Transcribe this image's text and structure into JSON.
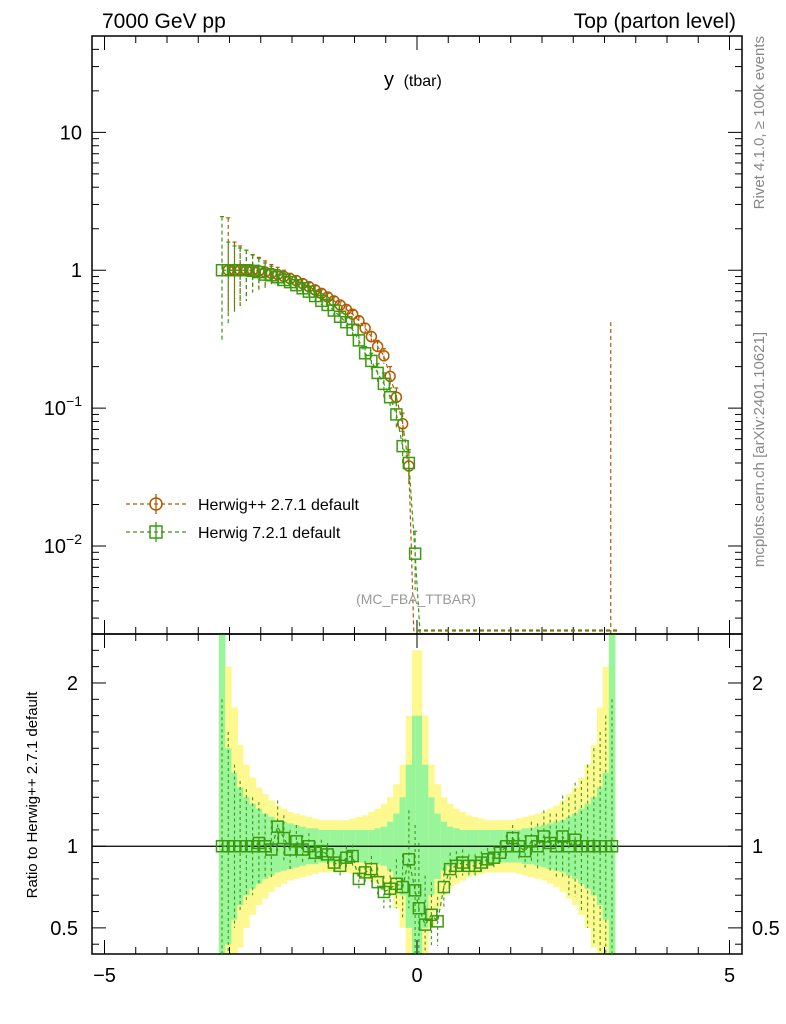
{
  "header": {
    "left": "7000 GeV pp",
    "right": "Top (parton level)"
  },
  "side_labels": {
    "rivet": "Rivet 4.1.0, ≥ 100k events",
    "mcplots": "mcplots.cern.ch [arXiv:2401.10621]"
  },
  "colors": {
    "herwig_pp": "#b35900",
    "herwig7": "#3a9a10",
    "band_inner": "#99f599",
    "band_outer": "#fdf990"
  },
  "chart_data": [
    {
      "type": "scatter",
      "panel": "main",
      "title": "y",
      "title_sub": "(tbar)",
      "analysis_label": "(MC_FBA_TTBAR)",
      "xlim": [
        -5.2,
        5.2
      ],
      "ylim_log": [
        0.0023,
        50
      ],
      "yscale": "log",
      "y_ticks": [
        {
          "value": 10,
          "label": "10"
        },
        {
          "value": 1,
          "label": "1"
        },
        {
          "value": 0.1,
          "base": "10",
          "exp": "−1"
        },
        {
          "value": 0.01,
          "base": "10",
          "exp": "−2"
        }
      ],
      "legend": [
        {
          "label": "Herwig++ 2.7.1 default",
          "marker": "circle",
          "color_key": "herwig_pp"
        },
        {
          "label": "Herwig 7.2.1 default",
          "marker": "square",
          "color_key": "herwig7"
        }
      ],
      "series": [
        {
          "name": "Herwig++ 2.7.1 default",
          "color_key": "herwig_pp",
          "marker": "circle",
          "x": [
            -3.02,
            -2.92,
            -2.83,
            -2.73,
            -2.63,
            -2.53,
            -2.43,
            -2.33,
            -2.23,
            -2.13,
            -2.03,
            -1.93,
            -1.83,
            -1.73,
            -1.63,
            -1.53,
            -1.43,
            -1.33,
            -1.23,
            -1.13,
            -1.03,
            -0.93,
            -0.83,
            -0.73,
            -0.63,
            -0.53,
            -0.43,
            -0.33,
            -0.23,
            -0.13
          ],
          "y": [
            1.0,
            1.0,
            1.0,
            1.0,
            1.0,
            0.99,
            0.97,
            0.95,
            0.93,
            0.9,
            0.87,
            0.84,
            0.8,
            0.76,
            0.72,
            0.68,
            0.64,
            0.6,
            0.56,
            0.52,
            0.48,
            0.43,
            0.38,
            0.33,
            0.28,
            0.24,
            0.17,
            0.12,
            0.077,
            0.038
          ],
          "err_low": [
            0.5,
            0.5,
            0.45,
            0.4,
            0.3,
            0.25,
            0.2,
            0.15,
            0.12,
            0.1,
            0.08,
            0.07,
            0.06,
            0.05,
            0.05,
            0.04,
            0.04,
            0.04,
            0.03,
            0.03,
            0.03,
            0.03,
            0.03,
            0.03,
            0.03,
            0.03,
            0.03,
            0.02,
            0.015,
            0.01
          ],
          "err_high": [
            1.4,
            0.6,
            0.5,
            0.4,
            0.3,
            0.25,
            0.2,
            0.15,
            0.12,
            0.1,
            0.08,
            0.07,
            0.06,
            0.05,
            0.05,
            0.04,
            0.04,
            0.04,
            0.03,
            0.03,
            0.03,
            0.03,
            0.03,
            0.03,
            0.03,
            0.03,
            0.03,
            0.02,
            0.015,
            0.01
          ],
          "spike_x": 3.1,
          "spike_top": 0.42
        },
        {
          "name": "Herwig 7.2.1 default",
          "color_key": "herwig7",
          "marker": "square",
          "x": [
            -3.12,
            -3.02,
            -2.92,
            -2.83,
            -2.73,
            -2.63,
            -2.53,
            -2.43,
            -2.33,
            -2.23,
            -2.13,
            -2.03,
            -1.93,
            -1.83,
            -1.73,
            -1.63,
            -1.53,
            -1.43,
            -1.33,
            -1.23,
            -1.13,
            -1.03,
            -0.93,
            -0.83,
            -0.73,
            -0.63,
            -0.53,
            -0.43,
            -0.33,
            -0.23,
            -0.13,
            -0.03
          ],
          "y": [
            1.0,
            1.0,
            1.0,
            1.0,
            1.0,
            0.99,
            0.97,
            0.93,
            0.92,
            0.89,
            0.85,
            0.82,
            0.78,
            0.74,
            0.7,
            0.65,
            0.6,
            0.56,
            0.51,
            0.46,
            0.42,
            0.37,
            0.31,
            0.25,
            0.22,
            0.18,
            0.15,
            0.12,
            0.09,
            0.053,
            0.04,
            0.0088
          ],
          "err_low": [
            0.7,
            0.6,
            0.5,
            0.45,
            0.4,
            0.3,
            0.25,
            0.2,
            0.15,
            0.12,
            0.1,
            0.08,
            0.07,
            0.06,
            0.05,
            0.05,
            0.04,
            0.04,
            0.04,
            0.03,
            0.03,
            0.03,
            0.03,
            0.03,
            0.03,
            0.03,
            0.03,
            0.02,
            0.02,
            0.015,
            0.01,
            0.004
          ],
          "err_high": [
            1.45,
            0.6,
            0.5,
            0.45,
            0.4,
            0.3,
            0.25,
            0.2,
            0.15,
            0.12,
            0.1,
            0.08,
            0.07,
            0.06,
            0.05,
            0.05,
            0.04,
            0.04,
            0.04,
            0.03,
            0.03,
            0.03,
            0.03,
            0.03,
            0.03,
            0.03,
            0.03,
            0.02,
            0.02,
            0.015,
            0.01,
            0.004
          ]
        }
      ],
      "floor_x": [
        0.0,
        3.22
      ]
    },
    {
      "type": "scatter",
      "panel": "ratio",
      "ylabel": "Ratio to Herwig++ 2.7.1 default",
      "xlim": [
        -5.2,
        5.2
      ],
      "ylim": [
        0.34,
        2.3
      ],
      "x_ticks": [
        -5,
        0,
        5
      ],
      "x_tick_labels": [
        "−5",
        "0",
        "5"
      ],
      "y_ticks": [
        0.5,
        1,
        2
      ],
      "y_tick_labels": [
        "0.5",
        "1",
        "2"
      ],
      "band_x": [
        -3.12,
        -3.02,
        -2.92,
        -2.83,
        -2.73,
        -2.63,
        -2.53,
        -2.43,
        -2.33,
        -2.23,
        -2.13,
        -2.03,
        -1.93,
        -1.83,
        -1.73,
        -1.63,
        -1.53,
        -1.43,
        -1.33,
        -1.23,
        -1.13,
        -1.03,
        -0.93,
        -0.83,
        -0.73,
        -0.63,
        -0.53,
        -0.43,
        -0.33,
        -0.23,
        -0.13,
        -0.03,
        0.03,
        0.13,
        0.23,
        0.33,
        0.43,
        0.53,
        0.63,
        0.73,
        0.83,
        0.93,
        1.03,
        1.13,
        1.23,
        1.33,
        1.43,
        1.53,
        1.63,
        1.73,
        1.83,
        1.93,
        2.03,
        2.13,
        2.23,
        2.33,
        2.43,
        2.53,
        2.63,
        2.73,
        2.83,
        2.93,
        3.02,
        3.12
      ],
      "band_inner": [
        2.3,
        0.6,
        0.45,
        0.36,
        0.3,
        0.26,
        0.23,
        0.2,
        0.18,
        0.16,
        0.15,
        0.14,
        0.13,
        0.12,
        0.11,
        0.11,
        0.1,
        0.1,
        0.1,
        0.1,
        0.1,
        0.1,
        0.1,
        0.1,
        0.1,
        0.11,
        0.12,
        0.15,
        0.2,
        0.3,
        0.5,
        0.8,
        0.8,
        0.5,
        0.3,
        0.2,
        0.15,
        0.12,
        0.11,
        0.1,
        0.1,
        0.1,
        0.1,
        0.1,
        0.1,
        0.1,
        0.1,
        0.1,
        0.1,
        0.11,
        0.11,
        0.12,
        0.13,
        0.14,
        0.15,
        0.16,
        0.18,
        0.2,
        0.23,
        0.26,
        0.3,
        0.36,
        0.45,
        2.3
      ],
      "band_outer": [
        2.3,
        1.1,
        0.85,
        0.62,
        0.5,
        0.42,
        0.36,
        0.32,
        0.28,
        0.25,
        0.23,
        0.21,
        0.2,
        0.19,
        0.18,
        0.17,
        0.16,
        0.16,
        0.16,
        0.16,
        0.16,
        0.17,
        0.18,
        0.19,
        0.21,
        0.23,
        0.26,
        0.3,
        0.38,
        0.5,
        0.8,
        1.2,
        1.2,
        0.8,
        0.5,
        0.38,
        0.3,
        0.26,
        0.23,
        0.21,
        0.19,
        0.18,
        0.17,
        0.16,
        0.16,
        0.16,
        0.16,
        0.16,
        0.17,
        0.18,
        0.19,
        0.2,
        0.21,
        0.23,
        0.25,
        0.28,
        0.32,
        0.36,
        0.42,
        0.5,
        0.62,
        0.85,
        1.1,
        2.3
      ],
      "ratio": {
        "x": [
          -3.12,
          -3.02,
          -2.92,
          -2.83,
          -2.73,
          -2.63,
          -2.53,
          -2.43,
          -2.33,
          -2.23,
          -2.13,
          -2.03,
          -1.93,
          -1.83,
          -1.73,
          -1.63,
          -1.53,
          -1.43,
          -1.33,
          -1.23,
          -1.13,
          -1.03,
          -0.93,
          -0.83,
          -0.73,
          -0.63,
          -0.53,
          -0.43,
          -0.33,
          -0.23,
          -0.13,
          -0.03,
          0.03,
          0.13,
          0.23,
          0.33,
          0.43,
          0.53,
          0.63,
          0.73,
          0.83,
          0.93,
          1.03,
          1.13,
          1.23,
          1.33,
          1.43,
          1.53,
          1.63,
          1.73,
          1.83,
          1.93,
          2.03,
          2.13,
          2.23,
          2.33,
          2.43,
          2.53,
          2.63,
          2.73,
          2.83,
          2.93,
          3.02,
          3.12
        ],
        "y": [
          1.0,
          1.0,
          1.0,
          1.0,
          1.0,
          1.0,
          1.02,
          1.0,
          0.98,
          1.12,
          1.05,
          0.98,
          1.03,
          0.98,
          1.0,
          0.96,
          0.97,
          0.95,
          0.9,
          0.88,
          0.93,
          0.94,
          0.8,
          0.84,
          0.86,
          0.78,
          0.72,
          0.74,
          0.77,
          0.75,
          0.92,
          0.73,
          0.62,
          0.52,
          0.58,
          0.54,
          0.75,
          0.86,
          0.88,
          0.9,
          0.88,
          0.88,
          0.9,
          0.92,
          0.93,
          0.96,
          1.0,
          1.05,
          1.0,
          0.97,
          1.03,
          1.0,
          1.06,
          1.02,
          1.0,
          1.06,
          1.0,
          1.04,
          1.0,
          1.0,
          1.0,
          1.0,
          1.0,
          1.0
        ],
        "err": [
          0.9,
          0.7,
          0.5,
          0.4,
          0.35,
          0.3,
          0.25,
          0.2,
          0.18,
          0.16,
          0.14,
          0.12,
          0.1,
          0.09,
          0.08,
          0.07,
          0.07,
          0.07,
          0.07,
          0.07,
          0.07,
          0.07,
          0.07,
          0.07,
          0.08,
          0.09,
          0.1,
          0.12,
          0.15,
          0.2,
          0.3,
          0.4,
          0.4,
          0.3,
          0.2,
          0.15,
          0.12,
          0.1,
          0.09,
          0.08,
          0.07,
          0.07,
          0.07,
          0.07,
          0.07,
          0.07,
          0.07,
          0.08,
          0.09,
          0.1,
          0.12,
          0.14,
          0.16,
          0.18,
          0.2,
          0.25,
          0.3,
          0.35,
          0.4,
          0.5,
          0.6,
          0.7,
          0.8,
          0.9
        ]
      }
    }
  ]
}
